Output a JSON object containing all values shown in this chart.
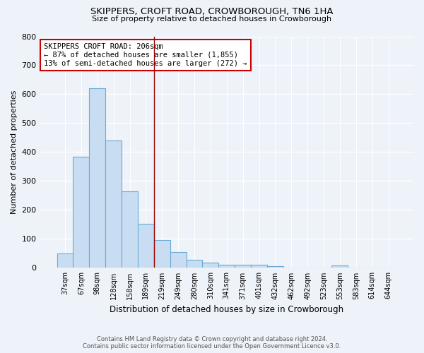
{
  "title": "SKIPPERS, CROFT ROAD, CROWBOROUGH, TN6 1HA",
  "subtitle": "Size of property relative to detached houses in Crowborough",
  "xlabel": "Distribution of detached houses by size in Crowborough",
  "ylabel": "Number of detached properties",
  "footer_line1": "Contains HM Land Registry data © Crown copyright and database right 2024.",
  "footer_line2": "Contains public sector information licensed under the Open Government Licence v3.0.",
  "bar_labels": [
    "37sqm",
    "67sqm",
    "98sqm",
    "128sqm",
    "158sqm",
    "189sqm",
    "219sqm",
    "249sqm",
    "280sqm",
    "310sqm",
    "341sqm",
    "371sqm",
    "401sqm",
    "432sqm",
    "462sqm",
    "492sqm",
    "523sqm",
    "553sqm",
    "583sqm",
    "614sqm",
    "644sqm"
  ],
  "bar_values": [
    50,
    385,
    620,
    440,
    265,
    152,
    97,
    55,
    29,
    18,
    11,
    12,
    12,
    7,
    0,
    0,
    0,
    8,
    0,
    0,
    0
  ],
  "bar_color": "#c9ddf2",
  "bar_edge_color": "#6aaad4",
  "background_color": "#eef2f9",
  "grid_color": "#ffffff",
  "vline_color": "#990000",
  "annotation_text": "SKIPPERS CROFT ROAD: 206sqm\n← 87% of detached houses are smaller (1,855)\n13% of semi-detached houses are larger (272) →",
  "annotation_box_color": "#ffffff",
  "annotation_box_edge": "#cc0000",
  "ylim": [
    0,
    800
  ],
  "yticks": [
    0,
    100,
    200,
    300,
    400,
    500,
    600,
    700,
    800
  ],
  "vline_index": 5.5
}
